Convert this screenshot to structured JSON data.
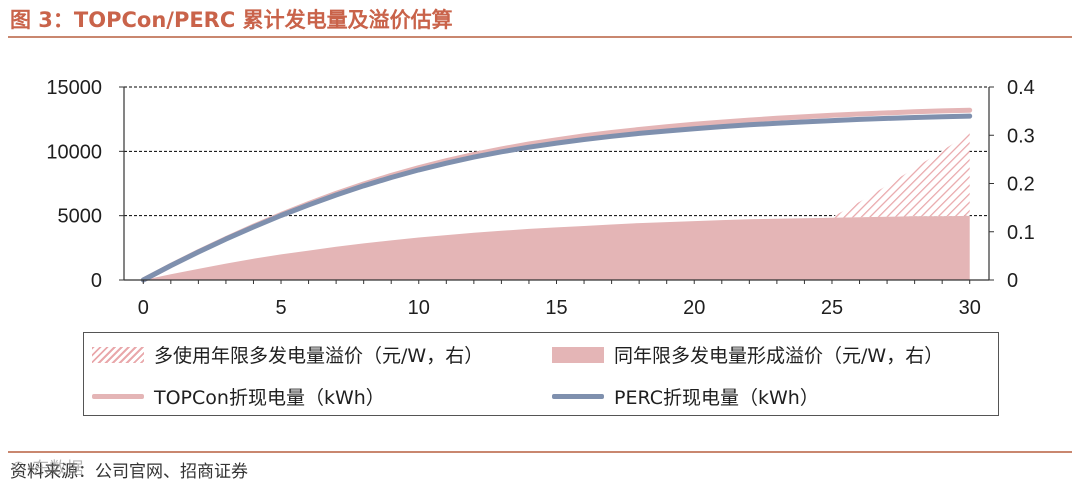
{
  "header": {
    "title": "图 3：TOPCon/PERC 累计发电量及溢价估算"
  },
  "footer": {
    "source": "资料来源：公司官网、招商证券",
    "watermark": "© 东数据"
  },
  "colors": {
    "title": "#c9634a",
    "topcon": "#e4b5b6",
    "perc": "#7f90ae",
    "area_fill": "#e4b5b6",
    "hatch": "#e9a8ab",
    "grid": "#000000"
  },
  "chart_data": {
    "type": "line",
    "x_ticks": [
      0,
      5,
      10,
      15,
      20,
      25,
      30
    ],
    "y_left_ticks": [
      "0",
      "5000",
      "10000",
      "15000"
    ],
    "y_right_ticks": [
      "0",
      "0.1",
      "0.2",
      "0.3",
      "0.4"
    ],
    "xlim": [
      -0.7,
      30.7
    ],
    "ylim_left": [
      0,
      15000
    ],
    "ylim_right": [
      0,
      0.4
    ],
    "x": [
      0,
      1,
      2,
      3,
      4,
      5,
      6,
      7,
      8,
      9,
      10,
      11,
      12,
      13,
      14,
      15,
      16,
      17,
      18,
      19,
      20,
      21,
      22,
      23,
      24,
      25,
      26,
      27,
      28,
      29,
      30
    ],
    "series": [
      {
        "name": "TOPCon折现电量（kWh）",
        "axis": "left",
        "kind": "line",
        "values": [
          0,
          1130,
          2210,
          3220,
          4180,
          5090,
          5940,
          6730,
          7460,
          8130,
          8730,
          9270,
          9760,
          10190,
          10570,
          10900,
          11200,
          11460,
          11700,
          11910,
          12100,
          12270,
          12430,
          12570,
          12690,
          12800,
          12900,
          12990,
          13070,
          13140,
          13200
        ]
      },
      {
        "name": "PERC折现电量（kWh）",
        "axis": "left",
        "kind": "line",
        "values": [
          0,
          1120,
          2180,
          3180,
          4120,
          5010,
          5840,
          6610,
          7320,
          7970,
          8560,
          9080,
          9550,
          9960,
          10320,
          10640,
          10920,
          11170,
          11390,
          11580,
          11760,
          11920,
          12060,
          12180,
          12290,
          12390,
          12480,
          12560,
          12630,
          12690,
          12740
        ]
      },
      {
        "name": "同年限多发电量形成溢价（元/W，右）",
        "axis": "right",
        "kind": "area",
        "values": [
          0,
          0.012,
          0.023,
          0.034,
          0.044,
          0.053,
          0.061,
          0.069,
          0.076,
          0.082,
          0.088,
          0.093,
          0.098,
          0.102,
          0.106,
          0.109,
          0.112,
          0.115,
          0.118,
          0.12,
          0.122,
          0.124,
          0.126,
          0.127,
          0.128,
          0.129,
          0.13,
          0.131,
          0.132,
          0.132,
          0.133
        ]
      },
      {
        "name": "多使用年限多发电量溢价（元/W，右）",
        "axis": "right",
        "kind": "hatched-area",
        "x": [
          25,
          26,
          27,
          28,
          29,
          30
        ],
        "values": [
          0.13,
          0.162,
          0.196,
          0.232,
          0.268,
          0.305
        ]
      }
    ],
    "legend": {
      "hatch_label": "多使用年限多发电量溢价（元/W，右）",
      "area_label": "同年限多发电量形成溢价（元/W，右）",
      "topcon_label": "TOPCon折现电量（kWh）",
      "perc_label": "PERC折现电量（kWh）"
    }
  }
}
